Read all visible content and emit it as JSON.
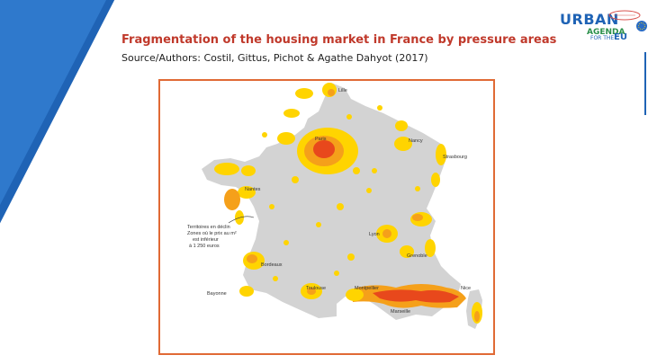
{
  "slide": {
    "title": "Fragmentation of the housing market in France by pressure areas",
    "subtitle": "Source/Authors: Costil,  Gittus, Pichot & Agathe Dahyot (2017)"
  },
  "logo": {
    "urban": "URBAN",
    "agenda": "AGENDA",
    "for_the": "FOR THE",
    "eu": "EU"
  },
  "map": {
    "cities": {
      "lille": "Lille",
      "paris": "Paris",
      "nancy": "Nancy",
      "strasbourg": "Strasbourg",
      "nantes": "Nantes",
      "lyon": "Lyon",
      "grenoble": "Grenoble",
      "bordeaux": "Bordeaux",
      "bayonne": "Bayonne",
      "toulouse": "Toulouse",
      "montpellier": "Montpellier",
      "marseille": "Marseille",
      "nice": "Nice"
    },
    "legend_lines": [
      "Territoires en déclin",
      "Zones où le prix au m²",
      "est inférieur",
      "à 1 250 euros"
    ],
    "colors": {
      "frame": "#e06a35",
      "land": "#d3d3d3",
      "low": "#ffd400",
      "mid": "#f5a01a",
      "high": "#e8481c",
      "title": "#c0392b",
      "accent_blue": "#1f63b5"
    }
  }
}
